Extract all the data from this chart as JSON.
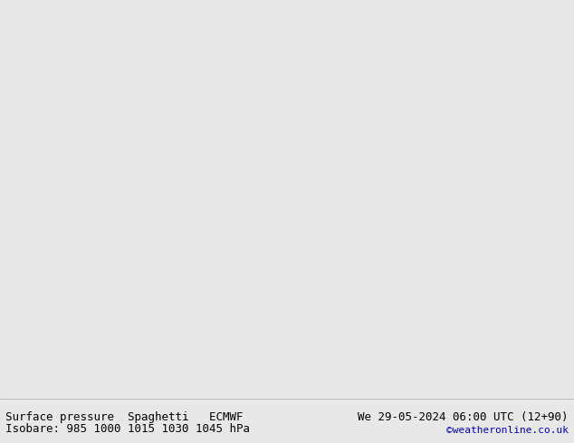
{
  "title_left": "Surface pressure  Spaghetti   ECMWF",
  "title_right": "We 29-05-2024 06:00 UTC (12+90)",
  "isobar_label": "Isobare: 985 1000 1015 1030 1045 hPa",
  "copyright": "©weatheronline.co.uk",
  "bg_color": "#e8e8e8",
  "land_color": "#a8e8a0",
  "land_edge_color": "#888888",
  "ocean_color": "#e8e8e8",
  "title_bg": "#ffffff",
  "title_color": "#000000",
  "copyright_color": "#0000cc",
  "font_size_title": 9,
  "font_size_isobar": 9,
  "font_size_copyright": 8,
  "bottom_bar_height": 0.1,
  "isobar_colors": {
    "985": "#ff00ff",
    "1000": "#000000",
    "1015": "#00aa00",
    "1030": "#ff6600",
    "1045": "#ff0000"
  },
  "map_extent": [
    90,
    210,
    -75,
    10
  ],
  "figsize": [
    6.34,
    4.9
  ],
  "dpi": 100
}
